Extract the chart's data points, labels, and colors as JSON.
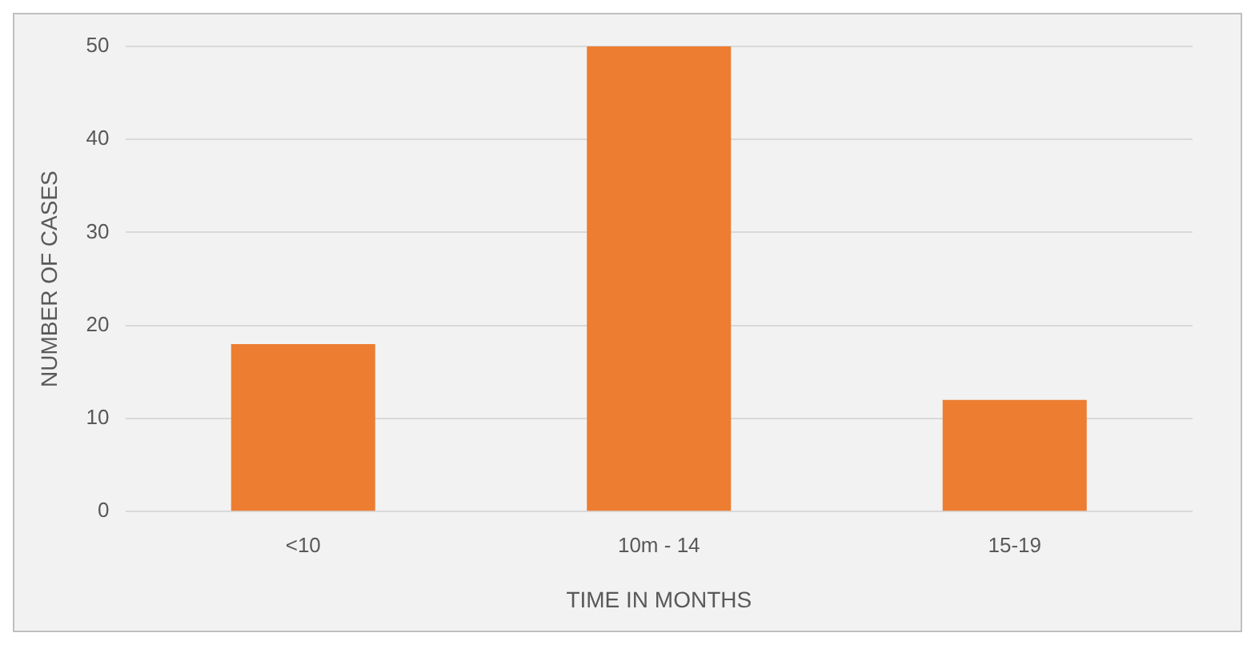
{
  "chart_data": {
    "type": "bar",
    "xlabel": "TIME IN MONTHS",
    "ylabel": "NUMBER OF CASES",
    "categories": [
      "<10",
      "10m - 14",
      "15-19"
    ],
    "values": [
      18,
      50,
      12
    ],
    "color": "#ed7d31",
    "ylim": [
      0,
      50
    ],
    "yticks": [
      0,
      10,
      20,
      30,
      40,
      50
    ],
    "grid": "y",
    "legend": false
  }
}
